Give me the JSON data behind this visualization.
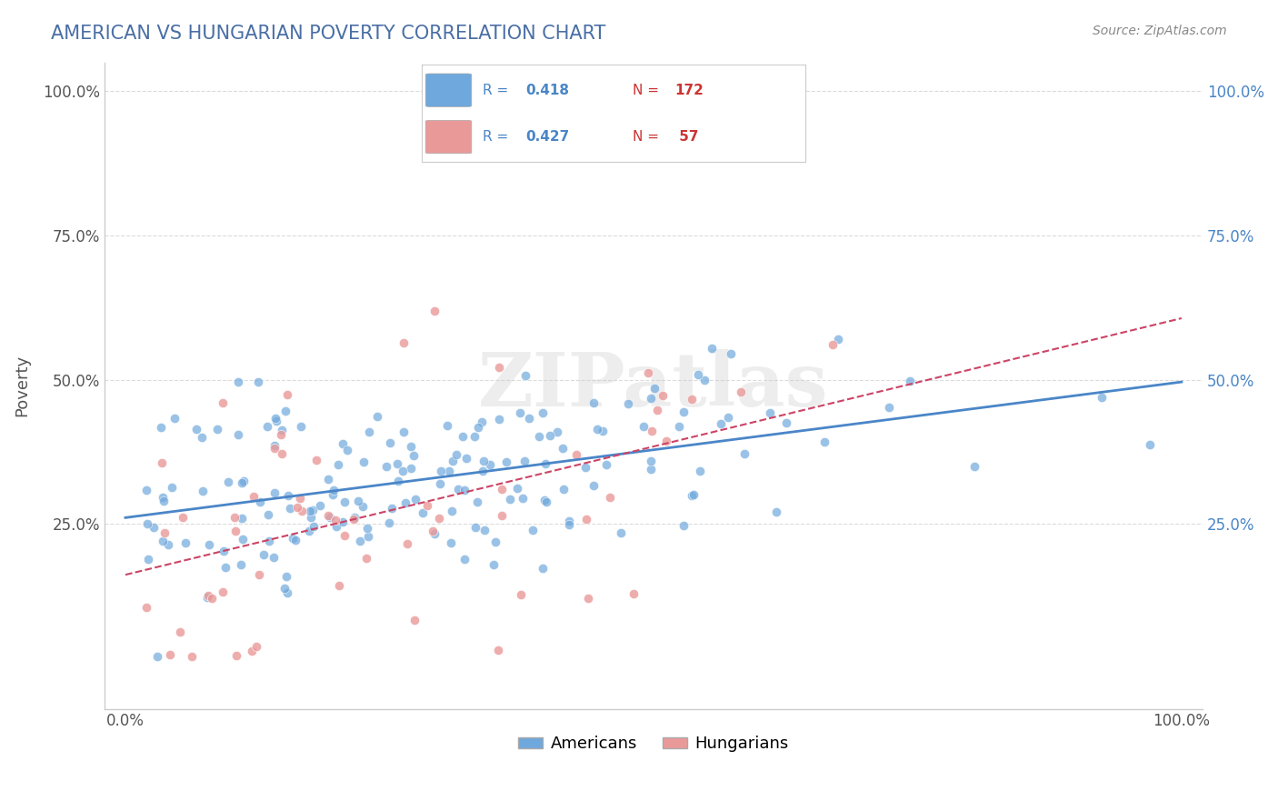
{
  "title": "AMERICAN VS HUNGARIAN POVERTY CORRELATION CHART",
  "source": "Source: ZipAtlas.com",
  "xlabel": "",
  "ylabel": "Poverty",
  "xlim": [
    0.0,
    1.0
  ],
  "ylim": [
    -0.05,
    1.05
  ],
  "x_tick_labels": [
    "0.0%",
    "100.0%"
  ],
  "y_tick_labels": [
    "25.0%",
    "50.0%",
    "75.0%",
    "100.0%"
  ],
  "american_color": "#6fa8dc",
  "hungarian_color": "#ea9999",
  "american_line_color": "#4a86c8",
  "hungarian_line_color": "#cc4466",
  "r_american": 0.418,
  "n_american": 172,
  "r_hungarian": 0.427,
  "n_hungarian": 57,
  "legend_r_color": "#4a86c8",
  "legend_label_american": "Americans",
  "legend_label_hungarian": "Hungarians",
  "watermark": "ZIPatlas",
  "background_color": "#ffffff",
  "grid_color": "#cccccc",
  "title_color": "#4a6fa5",
  "seed": 42
}
